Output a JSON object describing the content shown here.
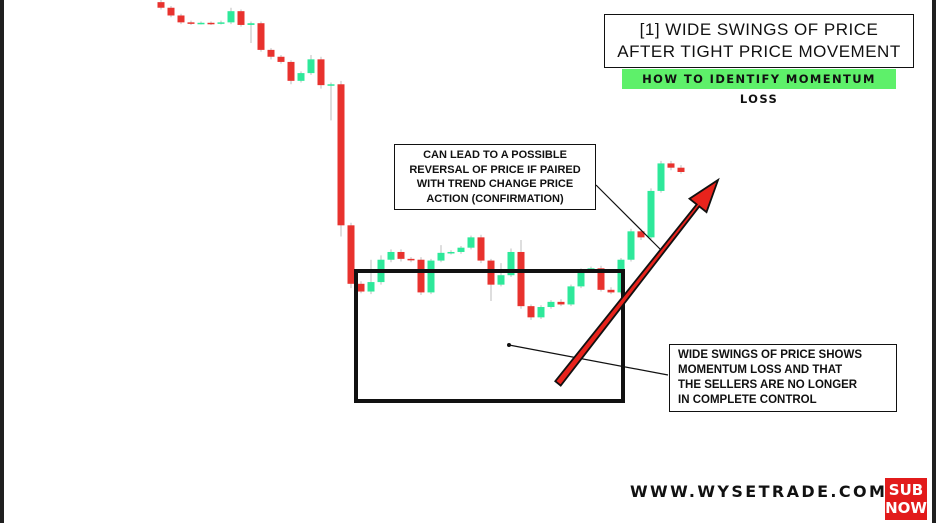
{
  "header": {
    "title_line1": "[1] WIDE SWINGS OF PRICE",
    "title_line2": "AFTER TIGHT PRICE MOVEMENT",
    "subtitle": "HOW TO IDENTIFY MOMENTUM LOSS"
  },
  "annotations": {
    "top_callout": [
      "CAN LEAD TO A POSSIBLE",
      "REVERSAL OF PRICE IF PAIRED",
      "WITH TREND CHANGE PRICE",
      "ACTION (CONFIRMATION)"
    ],
    "bottom_callout": [
      "WIDE SWINGS OF PRICE SHOWS",
      "MOMENTUM LOSS AND THAT",
      "THE SELLERS ARE NO LONGER",
      "IN COMPLETE CONTROL"
    ]
  },
  "footer": {
    "watermark": "WWW.WYSETRADE.COM",
    "sub_badge_line1": "SUB",
    "sub_badge_line2": "NOW"
  },
  "colors": {
    "bullish": "#2ee89a",
    "bearish": "#e8322e",
    "arrow": "#e8231c",
    "highlight": "#5ef06a"
  },
  "chart_data": {
    "type": "candlestick",
    "title": "",
    "xlabel": "",
    "ylabel": "",
    "ylim": [
      0,
      100
    ],
    "grid": false,
    "candles": [
      {
        "o": 99.5,
        "c": 98.2,
        "h": 100,
        "l": 97.8
      },
      {
        "o": 98.2,
        "c": 96.4,
        "h": 98.6,
        "l": 96.0
      },
      {
        "o": 96.4,
        "c": 94.8,
        "h": 96.8,
        "l": 94.4
      },
      {
        "o": 94.8,
        "c": 94.6,
        "h": 95.2,
        "l": 94.2
      },
      {
        "o": 94.6,
        "c": 94.7,
        "h": 95.0,
        "l": 94.3
      },
      {
        "o": 94.7,
        "c": 94.6,
        "h": 95.0,
        "l": 94.2
      },
      {
        "o": 94.6,
        "c": 94.8,
        "h": 95.2,
        "l": 94.3
      },
      {
        "o": 94.8,
        "c": 97.4,
        "h": 98.2,
        "l": 94.4
      },
      {
        "o": 97.4,
        "c": 94.2,
        "h": 97.8,
        "l": 93.8
      },
      {
        "o": 94.2,
        "c": 94.6,
        "h": 95.0,
        "l": 90.0
      },
      {
        "o": 94.6,
        "c": 88.4,
        "h": 95.0,
        "l": 88.0
      },
      {
        "o": 88.4,
        "c": 86.8,
        "h": 88.8,
        "l": 86.2
      },
      {
        "o": 86.8,
        "c": 85.6,
        "h": 87.2,
        "l": 85.2
      },
      {
        "o": 85.6,
        "c": 81.2,
        "h": 86.0,
        "l": 80.4
      },
      {
        "o": 81.2,
        "c": 83.0,
        "h": 83.4,
        "l": 80.8
      },
      {
        "o": 83.0,
        "c": 86.2,
        "h": 87.2,
        "l": 82.6
      },
      {
        "o": 86.2,
        "c": 80.2,
        "h": 86.8,
        "l": 79.4
      },
      {
        "o": 80.2,
        "c": 80.4,
        "h": 80.8,
        "l": 72.0
      },
      {
        "o": 80.4,
        "c": 47.6,
        "h": 81.2,
        "l": 45.0
      },
      {
        "o": 47.6,
        "c": 34.0,
        "h": 48.2,
        "l": 33.0
      },
      {
        "o": 34.0,
        "c": 32.2,
        "h": 34.6,
        "l": 31.8
      },
      {
        "o": 32.2,
        "c": 34.4,
        "h": 39.6,
        "l": 31.6
      },
      {
        "o": 34.4,
        "c": 39.6,
        "h": 40.6,
        "l": 33.8
      },
      {
        "o": 39.6,
        "c": 41.4,
        "h": 42.0,
        "l": 39.0
      },
      {
        "o": 41.4,
        "c": 39.8,
        "h": 42.0,
        "l": 39.2
      },
      {
        "o": 39.8,
        "c": 39.6,
        "h": 40.2,
        "l": 39.0
      },
      {
        "o": 39.6,
        "c": 32.0,
        "h": 40.2,
        "l": 31.4
      },
      {
        "o": 32.0,
        "c": 39.4,
        "h": 39.8,
        "l": 31.6
      },
      {
        "o": 39.4,
        "c": 41.2,
        "h": 43.0,
        "l": 39.0
      },
      {
        "o": 41.2,
        "c": 41.4,
        "h": 41.8,
        "l": 40.8
      },
      {
        "o": 41.4,
        "c": 42.4,
        "h": 42.8,
        "l": 41.0
      },
      {
        "o": 42.4,
        "c": 44.8,
        "h": 45.2,
        "l": 42.0
      },
      {
        "o": 44.8,
        "c": 39.4,
        "h": 45.4,
        "l": 38.8
      },
      {
        "o": 39.4,
        "c": 33.8,
        "h": 39.8,
        "l": 30.0
      },
      {
        "o": 33.8,
        "c": 36.0,
        "h": 38.8,
        "l": 33.4
      },
      {
        "o": 36.0,
        "c": 41.4,
        "h": 42.2,
        "l": 35.6
      },
      {
        "o": 41.4,
        "c": 28.8,
        "h": 44.2,
        "l": 28.2
      },
      {
        "o": 28.8,
        "c": 26.2,
        "h": 29.2,
        "l": 25.6
      },
      {
        "o": 26.2,
        "c": 28.6,
        "h": 29.0,
        "l": 25.8
      },
      {
        "o": 28.6,
        "c": 29.8,
        "h": 30.2,
        "l": 28.2
      },
      {
        "o": 29.8,
        "c": 29.2,
        "h": 30.4,
        "l": 28.8
      },
      {
        "o": 29.2,
        "c": 33.4,
        "h": 33.8,
        "l": 28.8
      },
      {
        "o": 33.4,
        "c": 37.2,
        "h": 37.6,
        "l": 33.0
      },
      {
        "o": 37.2,
        "c": 37.6,
        "h": 38.0,
        "l": 36.8
      },
      {
        "o": 37.6,
        "c": 32.6,
        "h": 38.2,
        "l": 32.2
      },
      {
        "o": 32.6,
        "c": 32.0,
        "h": 33.2,
        "l": 31.6
      },
      {
        "o": 32.0,
        "c": 39.6,
        "h": 40.0,
        "l": 31.6
      },
      {
        "o": 39.6,
        "c": 46.2,
        "h": 46.8,
        "l": 39.2
      },
      {
        "o": 46.2,
        "c": 44.8,
        "h": 46.8,
        "l": 44.2
      },
      {
        "o": 44.8,
        "c": 55.6,
        "h": 56.2,
        "l": 44.4
      },
      {
        "o": 55.6,
        "c": 62.0,
        "h": 62.6,
        "l": 55.2
      },
      {
        "o": 62.0,
        "c": 61.0,
        "h": 62.6,
        "l": 60.4
      },
      {
        "o": 61.0,
        "c": 60.0,
        "h": 61.6,
        "l": 59.6
      }
    ]
  }
}
